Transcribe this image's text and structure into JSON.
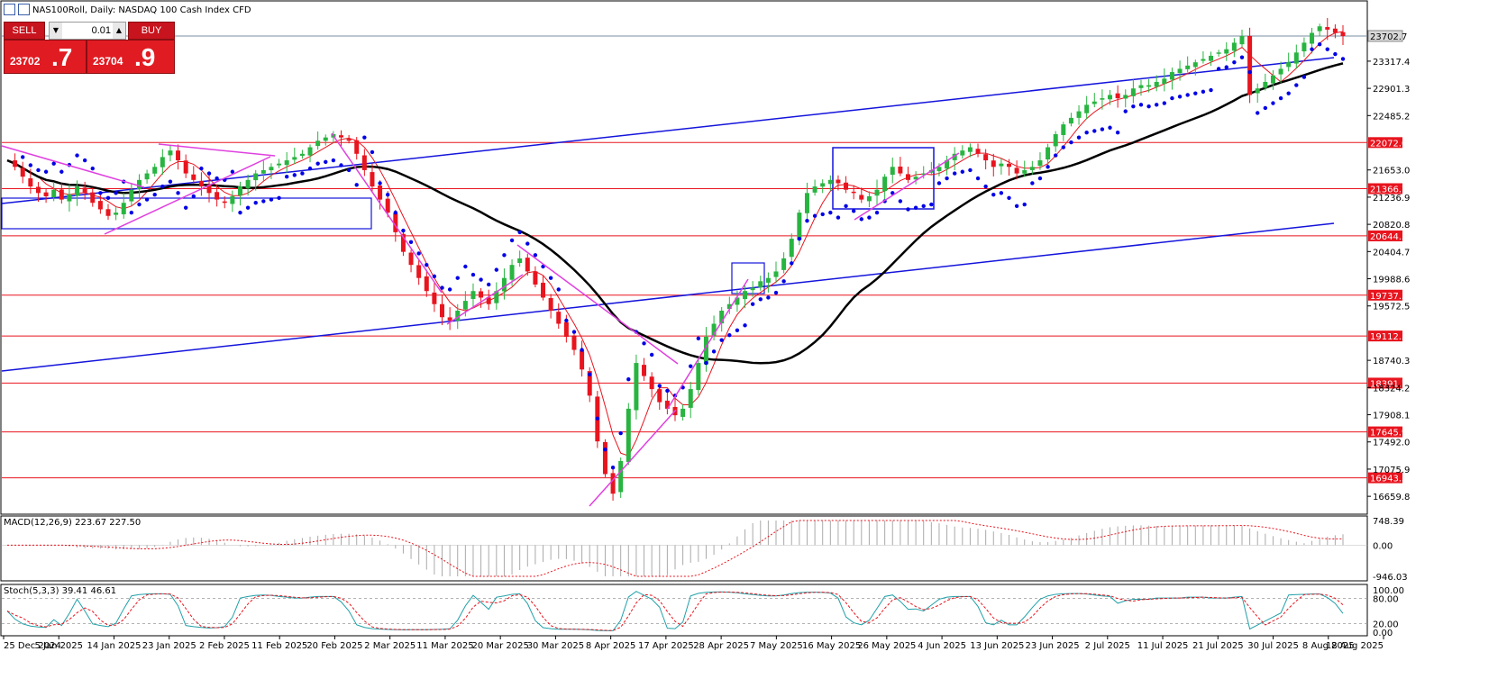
{
  "header": {
    "symbol_title": "NAS100Roll, Daily:  NASDAQ 100 Cash Index CFD"
  },
  "trade_panel": {
    "sell_label": "SELL",
    "buy_label": "BUY",
    "quantity": "0.01",
    "sell_price_small": "23702",
    "sell_price_big": ".7",
    "buy_price_small": "23704",
    "buy_price_big": ".9"
  },
  "indicators": {
    "macd_label": "MACD(12,26,9) 223.67 227.50",
    "stoch_label": "Stoch(5,3,3) 39.41 46.61"
  },
  "colors": {
    "bull": "#28b440",
    "bear": "#e8141e",
    "level_line": "#e8141e",
    "trendline": "#1414dc",
    "pattern": "#e040e0",
    "sar": "#0000e6",
    "ma_slow": "#000000",
    "ma_fast": "#e8141e",
    "stoch_main": "#20a0a8",
    "stoch_signal": "#e8141e",
    "price_tag": "#e8141e",
    "current_tag": "#a0a0a0"
  },
  "chart_data": {
    "type": "candlestick",
    "symbol": "NAS100Roll",
    "timeframe": "Daily",
    "ylim": [
      16400,
      23950
    ],
    "price_axis_ticks": [
      23317.4,
      22901.3,
      22485.2,
      21653.0,
      21236.9,
      20820.8,
      20404.7,
      19988.6,
      19572.5,
      18740.3,
      18324.2,
      17908.1,
      17492.0,
      17075.9,
      16659.8
    ],
    "level_lines": [
      22072.0,
      21366.7,
      20644.3,
      19737.3,
      19112.5,
      18391.7,
      17645.9,
      16943.3
    ],
    "current_price": 23702.7,
    "x_labels": [
      "25 Dec 2024",
      "5 Jan 2025",
      "14 Jan 2025",
      "23 Jan 2025",
      "2 Feb 2025",
      "11 Feb 2025",
      "20 Feb 2025",
      "2 Mar 2025",
      "11 Mar 2025",
      "20 Mar 2025",
      "30 Mar 2025",
      "8 Apr 2025",
      "17 Apr 2025",
      "28 Apr 2025",
      "7 May 2025",
      "16 May 2025",
      "26 May 2025",
      "4 Jun 2025",
      "13 Jun 2025",
      "23 Jun 2025",
      "2 Jul 2025",
      "11 Jul 2025",
      "21 Jul 2025",
      "30 Jul 2025",
      "8 Aug 2025",
      "18 Aug 2025"
    ],
    "close_series": [
      21800,
      21700,
      21550,
      21400,
      21300,
      21250,
      21350,
      21200,
      21280,
      21400,
      21300,
      21150,
      21050,
      20950,
      21000,
      21150,
      21350,
      21500,
      21600,
      21700,
      21850,
      21950,
      21800,
      21600,
      21500,
      21400,
      21300,
      21200,
      21150,
      21250,
      21400,
      21500,
      21600,
      21650,
      21700,
      21750,
      21800,
      21850,
      21900,
      22000,
      22100,
      22150,
      22200,
      22150,
      22100,
      21900,
      21650,
      21400,
      21200,
      21000,
      20700,
      20400,
      20200,
      20000,
      19800,
      19600,
      19400,
      19350,
      19500,
      19650,
      19800,
      19700,
      19600,
      19800,
      20000,
      20200,
      20300,
      20100,
      19900,
      19700,
      19500,
      19300,
      19100,
      18900,
      18600,
      18200,
      17500,
      17000,
      16700,
      17200,
      18000,
      18700,
      18500,
      18300,
      18100,
      18000,
      17900,
      18000,
      18300,
      18700,
      19100,
      19300,
      19500,
      19600,
      19700,
      19800,
      19850,
      19950,
      20000,
      20100,
      20300,
      20600,
      21000,
      21300,
      21400,
      21450,
      21500,
      21450,
      21350,
      21300,
      21200,
      21250,
      21350,
      21550,
      21700,
      21600,
      21500,
      21550,
      21600,
      21650,
      21700,
      21800,
      21900,
      21950,
      22000,
      21900,
      21800,
      21700,
      21750,
      21700,
      21600,
      21650,
      21700,
      21800,
      22000,
      22200,
      22350,
      22450,
      22550,
      22650,
      22700,
      22750,
      22800,
      22750,
      22800,
      22900,
      22950,
      22950,
      23000,
      23050,
      23150,
      23200,
      23250,
      23300,
      23350,
      23400,
      23450,
      23500,
      23600,
      23700,
      22800,
      22900,
      23000,
      23100,
      23200,
      23300,
      23450,
      23600,
      23750,
      23850,
      23800,
      23750,
      23702
    ],
    "macd_ylim": [
      -946.03,
      748.39
    ],
    "macd_ticks": [
      748.39,
      0.0,
      -946.03
    ],
    "stoch_ticks": [
      100.0,
      80.0,
      20.0,
      0.0
    ]
  }
}
